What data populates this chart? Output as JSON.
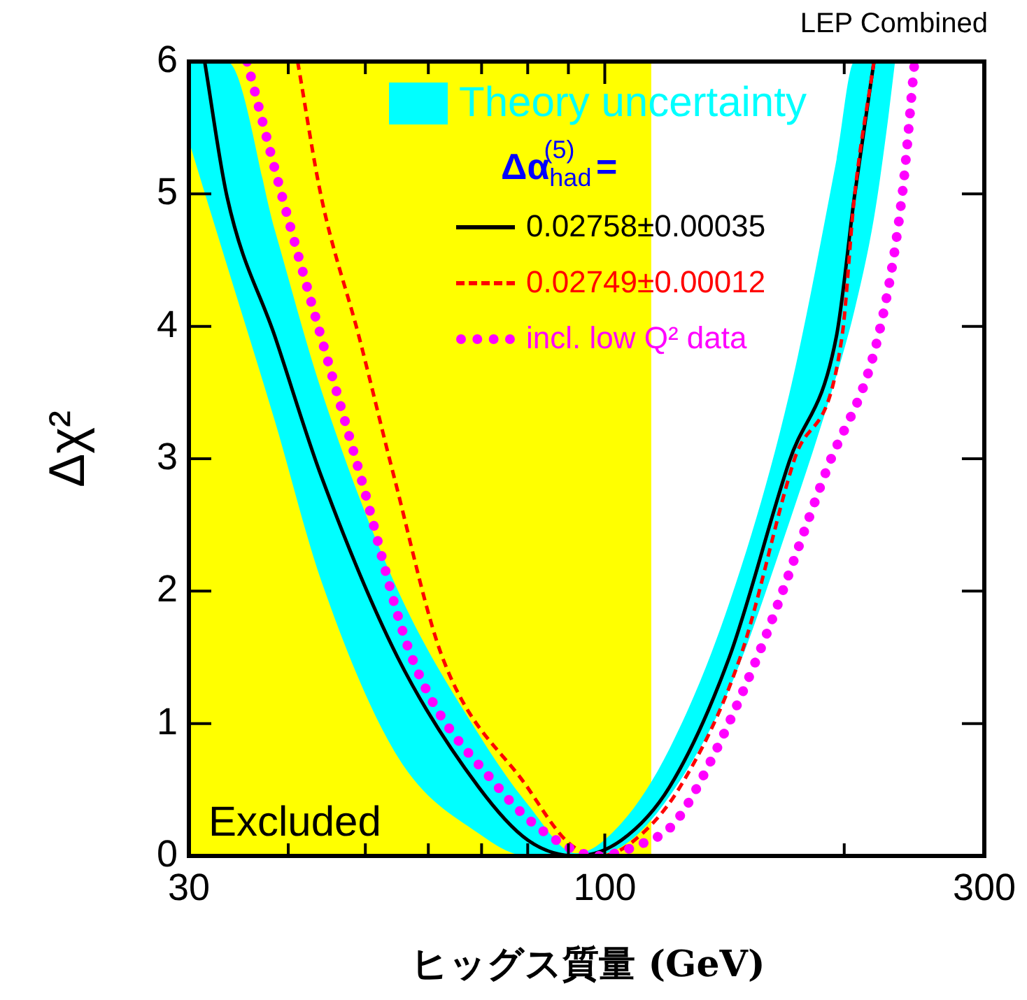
{
  "chart_data": {
    "type": "line",
    "xlabel": "ヒッグス質量 (GeV)",
    "ylabel": "Δχ²",
    "legend_title": "Δα$_{had}$$^{(5)}$ =",
    "annotations": [
      "LEP Combined",
      "Theory uncertainty"
    ],
    "log": "x",
    "xlim": [
      30,
      300
    ],
    "ylim": [
      0,
      6
    ],
    "xticks": [
      30,
      {
        "value": 40,
        "label": null
      },
      {
        "value": 50,
        "label": null
      },
      {
        "value": 60,
        "label": null
      },
      {
        "value": 70,
        "label": null
      },
      {
        "value": 80,
        "label": null
      },
      {
        "value": 90,
        "label": null
      },
      100,
      {
        "value": 200,
        "label": null
      },
      300
    ],
    "yticks": [
      0,
      1,
      2,
      3,
      4,
      5,
      6
    ],
    "grid": false,
    "legend": "top right",
    "marker": "none",
    "bands": [
      {
        "axis": "x",
        "from": 30,
        "to": 114.4,
        "label": "Excluded",
        "color": "#ffff00"
      }
    ],
    "series": [
      {
        "type": "line",
        "name": "0.02758±0.00035",
        "color": "#000000",
        "line_style": "solid",
        "x": [
          30,
          31.4,
          33.5,
          38.5,
          44,
          54.9,
          69.4,
          80,
          92,
          105,
          120.6,
          143.4,
          170.6,
          195.6,
          206,
          218,
          226,
          231.7
        ],
        "values": [
          null,
          6,
          4.98,
          3.92,
          2.87,
          1.5,
          0.52,
          0.12,
          0,
          0.12,
          0.52,
          1.5,
          2.98,
          3.93,
          4.98,
          6,
          null,
          null
        ],
        "lower": [
          5.4,
          5.01,
          4.46,
          3.28,
          2.08,
          0.75,
          0.17,
          0,
          0,
          0.07,
          0.45,
          1.26,
          2.52,
          3.63,
          4.12,
          4.82,
          5.47,
          6
        ],
        "upper": [
          6,
          6,
          6,
          4.72,
          3.52,
          2.01,
          0.92,
          0.39,
          0.02,
          0.25,
          0.81,
          1.91,
          3.49,
          5.26,
          6,
          6,
          6,
          6
        ]
      },
      {
        "type": "line",
        "name": "0.02749±0.00012",
        "color": "#ff0000",
        "line_style": "dashed",
        "x": [
          41.1,
          44,
          49.1,
          54.3,
          62.5,
          79.9,
          90,
          98.6,
          108,
          124.3,
          148,
          172.8,
          198.8,
          206,
          218
        ],
        "values": [
          6,
          4.98,
          3.92,
          2.87,
          1.5,
          0.52,
          0.1,
          0,
          0.1,
          0.52,
          1.5,
          2.98,
          3.93,
          4.98,
          6
        ]
      },
      {
        "type": "line",
        "name": "incl. low Q² data",
        "color": "#ff00ff",
        "line_style": "dotted",
        "x": [
          35.5,
          39.3,
          49.3,
          57.2,
          73.4,
          84.9,
          97.8,
          110,
          121.6,
          130.7,
          155.5,
          190.2,
          220.8,
          236.4,
          245.2
        ],
        "values": [
          6,
          4.98,
          2.87,
          1.5,
          0.52,
          0.16,
          0,
          0.08,
          0.23,
          0.52,
          1.5,
          2.92,
          3.93,
          4.98,
          6
        ]
      }
    ]
  }
}
